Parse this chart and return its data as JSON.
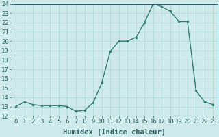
{
  "x": [
    0,
    1,
    2,
    3,
    4,
    5,
    6,
    7,
    8,
    9,
    10,
    11,
    12,
    13,
    14,
    15,
    16,
    17,
    18,
    19,
    20,
    21,
    22,
    23
  ],
  "y": [
    13.0,
    13.5,
    13.2,
    13.1,
    13.1,
    13.1,
    13.0,
    12.5,
    12.6,
    13.4,
    15.5,
    18.9,
    20.0,
    20.0,
    20.4,
    22.0,
    24.0,
    23.7,
    23.2,
    22.1,
    22.1,
    14.7,
    13.5,
    13.2
  ],
  "line_color": "#2e7d6e",
  "marker": "o",
  "marker_size": 2.0,
  "bg_color": "#ceeaea",
  "grid_color": "#aed4d4",
  "xlabel": "Humidex (Indice chaleur)",
  "ylim": [
    12,
    24
  ],
  "xlim": [
    -0.5,
    23.5
  ],
  "yticks": [
    12,
    13,
    14,
    15,
    16,
    17,
    18,
    19,
    20,
    21,
    22,
    23,
    24
  ],
  "xticks": [
    0,
    1,
    2,
    3,
    4,
    5,
    6,
    7,
    8,
    9,
    10,
    11,
    12,
    13,
    14,
    15,
    16,
    17,
    18,
    19,
    20,
    21,
    22,
    23
  ],
  "tick_label_fontsize": 6.5,
  "xlabel_fontsize": 7.5,
  "line_width": 1.0,
  "tick_color": "#2a6060",
  "spine_color": "#2a6060"
}
